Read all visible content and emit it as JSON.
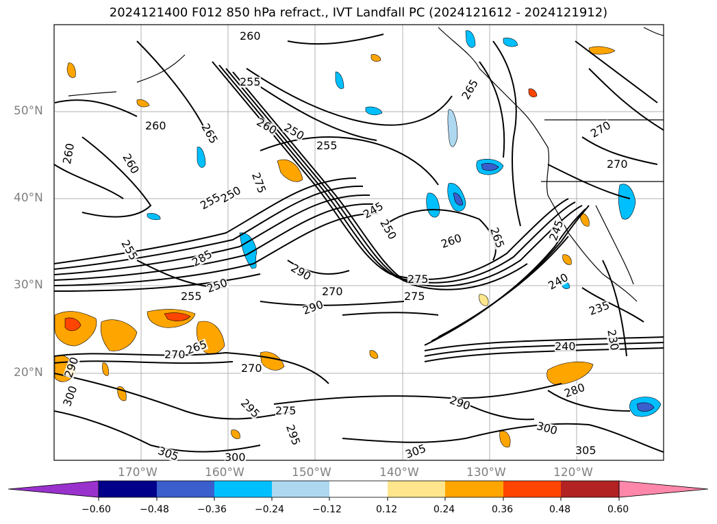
{
  "title": "2024121400 F012 850 hPa refract., IVT Landfall PC (2024121612 - 2024121912)",
  "map": {
    "lat_labels": [
      "50°N",
      "40°N",
      "30°N",
      "20°N"
    ],
    "lon_labels": [
      "170°W",
      "160°W",
      "150°W",
      "140°W",
      "130°W",
      "120°W"
    ],
    "extent": {
      "lon_min": -180,
      "lon_max": -110,
      "lat_min": 10,
      "lat_max": 60
    },
    "grid": true,
    "contour_labels": [
      "260",
      "255",
      "260",
      "265",
      "250",
      "255",
      "260",
      "265",
      "270",
      "260",
      "270",
      "260",
      "275",
      "250",
      "255",
      "245",
      "250",
      "265",
      "245",
      "255",
      "285",
      "290",
      "260",
      "270",
      "275",
      "250",
      "255",
      "235",
      "240",
      "230",
      "240",
      "280",
      "290",
      "300",
      "305",
      "300",
      "305",
      "295",
      "275",
      "270",
      "265",
      "275",
      "290",
      "300",
      "295",
      "290",
      "305",
      "270"
    ]
  },
  "colorbar": {
    "ticks": [
      "−0.60",
      "−0.48",
      "−0.36",
      "−0.24",
      "−0.12",
      "0.12",
      "0.24",
      "0.36",
      "0.48",
      "0.60"
    ],
    "colors": [
      "#9932cc",
      "#00008b",
      "#3a5fcd",
      "#00bfff",
      "#add8f0",
      "#ffffff",
      "#ffe68c",
      "#ffa500",
      "#ff4500",
      "#b22222",
      "#ff88aa"
    ]
  }
}
